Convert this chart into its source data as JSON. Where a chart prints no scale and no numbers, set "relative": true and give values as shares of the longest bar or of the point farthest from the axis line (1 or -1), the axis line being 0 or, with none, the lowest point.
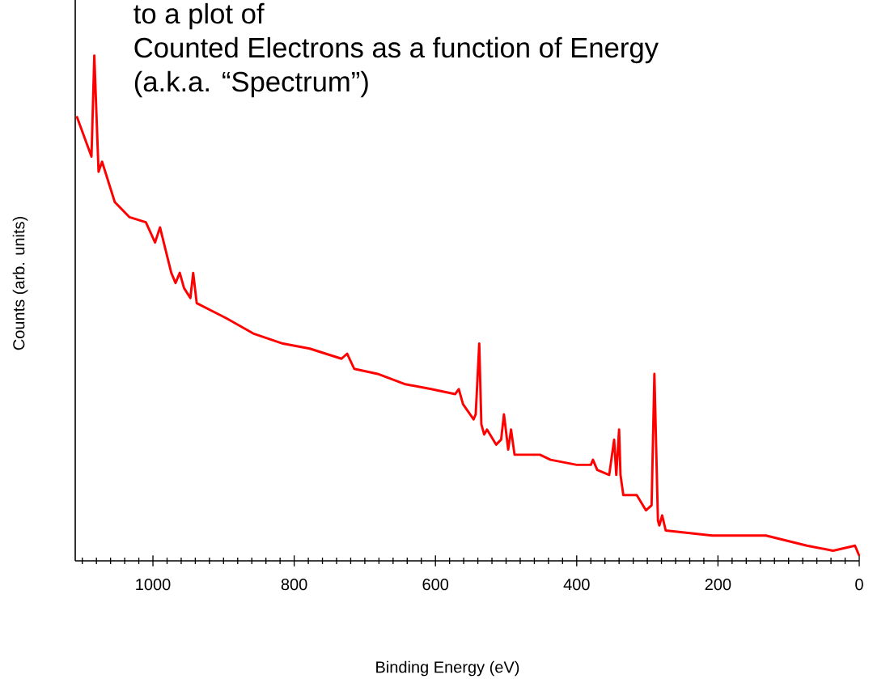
{
  "chart_data": {
    "type": "line",
    "relative": true,
    "annotations": [
      "to a plot of",
      "Counted Electrons as a function of Energy",
      "(a.k.a. “Spectrum”)"
    ],
    "xlabel": "Binding Energy (eV)",
    "ylabel": "Counts (arb. units)",
    "x": [
      1108,
      1087,
      1083,
      1077,
      1072,
      1054,
      1033,
      1010,
      997,
      990,
      974,
      968,
      962,
      956,
      947,
      943,
      938,
      896,
      858,
      816,
      778,
      733,
      725,
      715,
      682,
      644,
      606,
      572,
      567,
      561,
      546,
      543,
      538,
      535,
      531,
      527,
      514,
      507,
      503,
      497,
      493,
      488,
      452,
      437,
      400,
      380,
      377,
      371,
      354,
      347,
      344,
      340,
      338,
      334,
      315,
      302,
      294,
      290,
      285,
      283,
      279,
      274,
      208,
      132,
      74,
      37,
      6,
      0
    ],
    "series": [
      {
        "color": "#ff0000",
        "values": [
          0.88,
          0.8,
          1.0,
          0.77,
          0.79,
          0.71,
          0.68,
          0.67,
          0.63,
          0.66,
          0.57,
          0.55,
          0.57,
          0.54,
          0.52,
          0.57,
          0.51,
          0.48,
          0.45,
          0.43,
          0.42,
          0.4,
          0.41,
          0.38,
          0.37,
          0.35,
          0.34,
          0.33,
          0.34,
          0.31,
          0.28,
          0.29,
          0.43,
          0.27,
          0.25,
          0.26,
          0.23,
          0.24,
          0.29,
          0.22,
          0.26,
          0.21,
          0.21,
          0.2,
          0.19,
          0.19,
          0.2,
          0.18,
          0.17,
          0.24,
          0.17,
          0.26,
          0.17,
          0.13,
          0.13,
          0.1,
          0.11,
          0.37,
          0.08,
          0.07,
          0.09,
          0.06,
          0.05,
          0.05,
          0.03,
          0.02,
          0.03,
          0.01
        ]
      }
    ],
    "xlim": [
      1110,
      0
    ],
    "xticks": [
      {
        "value": 1100,
        "label": null
      },
      {
        "value": 1080,
        "label": null
      },
      {
        "value": 1060,
        "label": null
      },
      {
        "value": 1040,
        "label": null
      },
      {
        "value": 1020,
        "label": null
      },
      1000,
      {
        "value": 980,
        "label": null
      },
      {
        "value": 960,
        "label": null
      },
      {
        "value": 940,
        "label": null
      },
      {
        "value": 920,
        "label": null
      },
      {
        "value": 900,
        "label": null
      },
      {
        "value": 880,
        "label": null
      },
      {
        "value": 860,
        "label": null
      },
      {
        "value": 840,
        "label": null
      },
      {
        "value": 820,
        "label": null
      },
      800,
      {
        "value": 780,
        "label": null
      },
      {
        "value": 760,
        "label": null
      },
      {
        "value": 740,
        "label": null
      },
      {
        "value": 720,
        "label": null
      },
      {
        "value": 700,
        "label": null
      },
      {
        "value": 680,
        "label": null
      },
      {
        "value": 660,
        "label": null
      },
      {
        "value": 640,
        "label": null
      },
      {
        "value": 620,
        "label": null
      },
      600,
      {
        "value": 580,
        "label": null
      },
      {
        "value": 560,
        "label": null
      },
      {
        "value": 540,
        "label": null
      },
      {
        "value": 520,
        "label": null
      },
      {
        "value": 500,
        "label": null
      },
      {
        "value": 480,
        "label": null
      },
      {
        "value": 460,
        "label": null
      },
      {
        "value": 440,
        "label": null
      },
      {
        "value": 420,
        "label": null
      },
      400,
      {
        "value": 380,
        "label": null
      },
      {
        "value": 360,
        "label": null
      },
      {
        "value": 340,
        "label": null
      },
      {
        "value": 320,
        "label": null
      },
      {
        "value": 300,
        "label": null
      },
      {
        "value": 280,
        "label": null
      },
      {
        "value": 260,
        "label": null
      },
      {
        "value": 240,
        "label": null
      },
      {
        "value": 220,
        "label": null
      },
      200,
      {
        "value": 180,
        "label": null
      },
      {
        "value": 160,
        "label": null
      },
      {
        "value": 140,
        "label": null
      },
      {
        "value": 120,
        "label": null
      },
      {
        "value": 100,
        "label": null
      },
      {
        "value": 80,
        "label": null
      },
      {
        "value": 60,
        "label": null
      },
      {
        "value": 40,
        "label": null
      },
      {
        "value": 20,
        "label": null
      },
      0
    ],
    "grid": false,
    "marker": "none",
    "line_style": "solid"
  }
}
